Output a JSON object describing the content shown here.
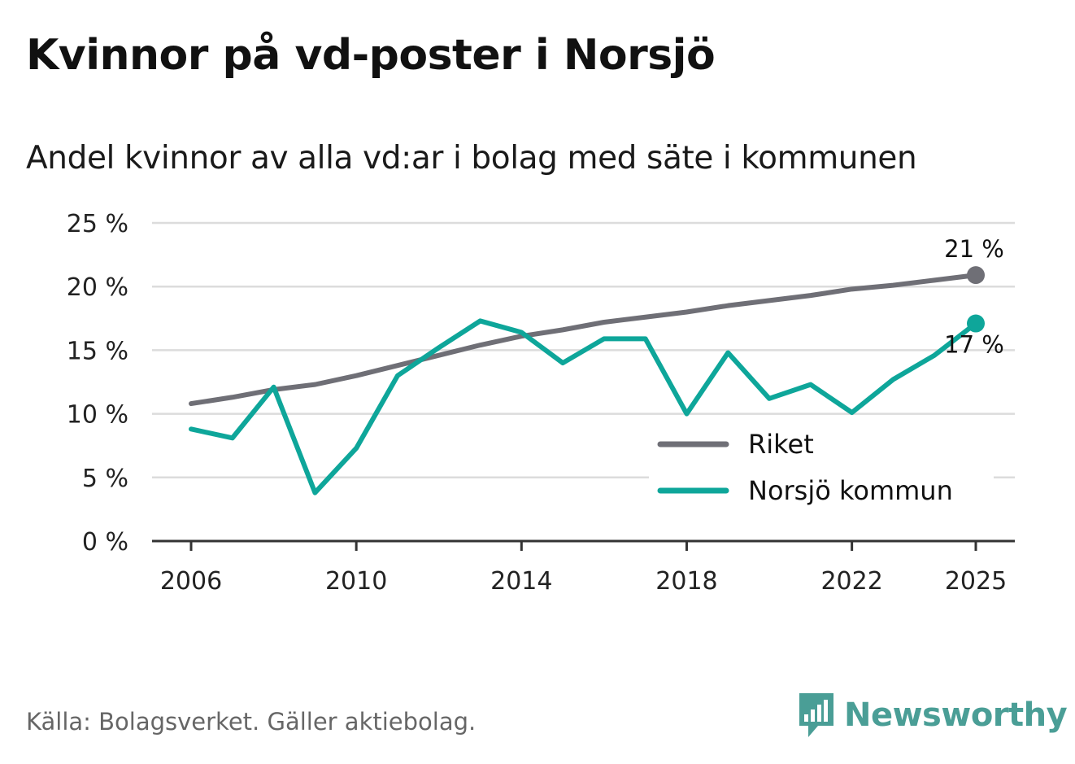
{
  "title": "Kvinnor på vd-poster i Norsjö",
  "subtitle": "Andel kvinnor av alla vd:ar i bolag med säte i kommunen",
  "source": "Källa: Bolagsverket. Gäller aktiebolag.",
  "brand": {
    "name": "Newsworthy",
    "color": "#4a9e96"
  },
  "chart_data": {
    "type": "line",
    "x": [
      2006,
      2007,
      2008,
      2009,
      2010,
      2011,
      2012,
      2013,
      2014,
      2015,
      2016,
      2017,
      2018,
      2019,
      2020,
      2021,
      2022,
      2023,
      2024,
      2025
    ],
    "ylim": [
      0,
      25
    ],
    "yticks": [
      0,
      5,
      10,
      15,
      20,
      25
    ],
    "ytick_labels": [
      "0 %",
      "5 %",
      "10 %",
      "15 %",
      "20 %",
      "25 %"
    ],
    "xticks": [
      2006,
      2010,
      2014,
      2018,
      2022,
      2025
    ],
    "xtick_labels": [
      "2006",
      "2010",
      "2014",
      "2018",
      "2022",
      "2025"
    ],
    "grid": true,
    "legend": "bottom-right",
    "series": [
      {
        "name": "Riket",
        "color": "#6f6f76",
        "values": [
          10.8,
          11.3,
          11.9,
          12.3,
          13.0,
          13.8,
          14.6,
          15.4,
          16.1,
          16.6,
          17.2,
          17.6,
          18.0,
          18.5,
          18.9,
          19.3,
          19.8,
          20.1,
          20.5,
          20.9
        ],
        "end_label": "21 %"
      },
      {
        "name": "Norsjö kommun",
        "color": "#0ea69a",
        "values": [
          8.8,
          8.1,
          12.1,
          3.8,
          7.3,
          13.0,
          15.2,
          17.3,
          16.4,
          14.0,
          15.9,
          15.9,
          10.0,
          14.8,
          11.2,
          12.3,
          10.1,
          12.7,
          14.6,
          17.1
        ],
        "end_label": "17 %"
      }
    ]
  }
}
